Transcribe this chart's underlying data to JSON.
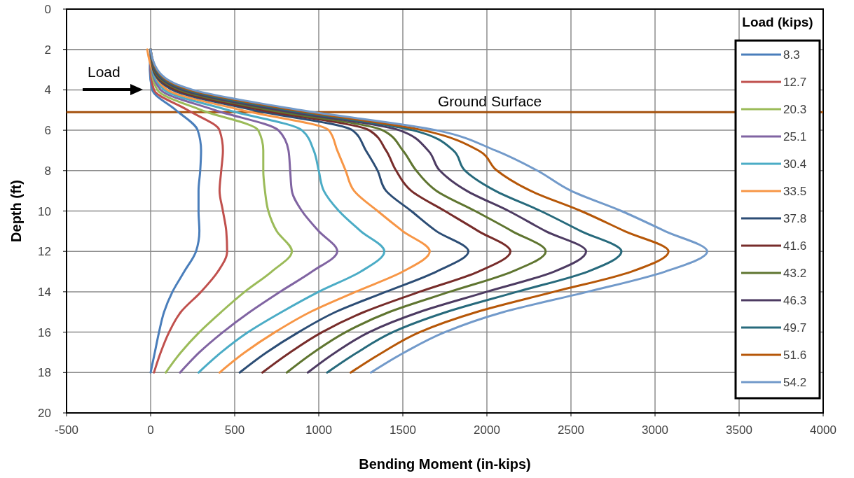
{
  "chart_data": {
    "type": "line",
    "xlabel": "Bending Moment (in-kips)",
    "ylabel": "Depth (ft)",
    "legend_title": "Load (kips)",
    "legend": "right",
    "grid": true,
    "line_style": "solid",
    "marker": "none",
    "xlim": [
      -500,
      4000
    ],
    "xticks": [
      -500,
      0,
      500,
      1000,
      1500,
      2000,
      2500,
      3000,
      3500,
      4000
    ],
    "ylim": [
      20,
      0
    ],
    "yticks": [
      0,
      2,
      4,
      6,
      8,
      10,
      12,
      14,
      16,
      18,
      20
    ],
    "annotations": [
      "Load"
    ],
    "ref_lines": [
      {
        "axis": "y",
        "value": 5.1,
        "label": "Ground Surface",
        "color": "#a5520e"
      }
    ],
    "series": [
      {
        "name": "8.3",
        "color": "#4a7ebb",
        "x": [
          0,
          -5,
          10,
          150,
          280,
          300,
          295,
          285,
          285,
          290,
          270,
          200,
          130,
          80,
          50,
          25,
          0
        ],
        "values": [
          2,
          3,
          4,
          5,
          6,
          7,
          8,
          9,
          10,
          11,
          12,
          13,
          14,
          15,
          16,
          17,
          18
        ]
      },
      {
        "name": "12.7",
        "color": "#c0504d",
        "x": [
          0,
          0,
          20,
          220,
          410,
          430,
          420,
          410,
          430,
          450,
          455,
          400,
          300,
          180,
          110,
          60,
          20
        ],
        "values": [
          2,
          3,
          4,
          5,
          6,
          7,
          8,
          9,
          10,
          11,
          12,
          13,
          14,
          15,
          16,
          17,
          18
        ]
      },
      {
        "name": "20.3",
        "color": "#9bbb59",
        "x": [
          0,
          5,
          40,
          300,
          640,
          670,
          670,
          680,
          700,
          750,
          840,
          720,
          560,
          420,
          290,
          180,
          90
        ],
        "values": [
          2,
          3,
          4,
          5,
          6,
          7,
          8,
          9,
          10,
          11,
          12,
          13,
          14,
          15,
          16,
          17,
          18
        ]
      },
      {
        "name": "25.1",
        "color": "#8064a2",
        "x": [
          0,
          8,
          60,
          380,
          760,
          820,
          830,
          840,
          900,
          1000,
          1110,
          960,
          770,
          590,
          430,
          290,
          175
        ],
        "values": [
          2,
          3,
          4,
          5,
          6,
          7,
          8,
          9,
          10,
          11,
          12,
          13,
          14,
          15,
          16,
          17,
          18
        ]
      },
      {
        "name": "30.4",
        "color": "#4bacc6",
        "x": [
          0,
          10,
          80,
          460,
          900,
          970,
          1000,
          1030,
          1120,
          1250,
          1390,
          1250,
          1000,
          780,
          580,
          420,
          285
        ],
        "values": [
          2,
          3,
          4,
          5,
          6,
          7,
          8,
          9,
          10,
          11,
          12,
          13,
          14,
          15,
          16,
          17,
          18
        ]
      },
      {
        "name": "33.5",
        "color": "#f79646",
        "x": [
          -20,
          12,
          100,
          540,
          1060,
          1110,
          1160,
          1210,
          1350,
          1500,
          1660,
          1500,
          1220,
          950,
          740,
          560,
          410
        ],
        "values": [
          2,
          3,
          4,
          5,
          6,
          7,
          8,
          9,
          10,
          11,
          12,
          13,
          14,
          15,
          16,
          17,
          18
        ]
      },
      {
        "name": "37.8",
        "color": "#2c4d75",
        "x": [
          0,
          15,
          130,
          610,
          1200,
          1280,
          1350,
          1400,
          1550,
          1700,
          1890,
          1700,
          1400,
          1100,
          880,
          690,
          530
        ],
        "values": [
          2,
          3,
          4,
          5,
          6,
          7,
          8,
          9,
          10,
          11,
          12,
          13,
          14,
          15,
          16,
          17,
          18
        ]
      },
      {
        "name": "41.6",
        "color": "#772c2a",
        "x": [
          0,
          18,
          150,
          660,
          1300,
          1400,
          1460,
          1550,
          1750,
          1950,
          2140,
          1950,
          1600,
          1270,
          1020,
          830,
          665
        ],
        "values": [
          2,
          3,
          4,
          5,
          6,
          7,
          8,
          9,
          10,
          11,
          12,
          13,
          14,
          15,
          16,
          17,
          18
        ]
      },
      {
        "name": "43.2",
        "color": "#5f7530",
        "x": [
          0,
          20,
          170,
          710,
          1380,
          1500,
          1580,
          1700,
          1930,
          2150,
          2350,
          2150,
          1780,
          1420,
          1160,
          970,
          810
        ],
        "values": [
          2,
          3,
          4,
          5,
          6,
          7,
          8,
          9,
          10,
          11,
          12,
          13,
          14,
          15,
          16,
          17,
          18
        ]
      },
      {
        "name": "46.3",
        "color": "#4d3b62",
        "x": [
          0,
          25,
          190,
          760,
          1480,
          1650,
          1720,
          1880,
          2130,
          2350,
          2590,
          2400,
          2000,
          1600,
          1300,
          1100,
          935
        ],
        "values": [
          2,
          3,
          4,
          5,
          6,
          7,
          8,
          9,
          10,
          11,
          12,
          13,
          14,
          15,
          16,
          17,
          18
        ]
      },
      {
        "name": "49.7",
        "color": "#276a7c",
        "x": [
          0,
          30,
          210,
          810,
          1560,
          1800,
          1870,
          2050,
          2320,
          2560,
          2800,
          2600,
          2180,
          1760,
          1440,
          1230,
          1050
        ],
        "values": [
          2,
          3,
          4,
          5,
          6,
          7,
          8,
          9,
          10,
          11,
          12,
          13,
          14,
          15,
          16,
          17,
          18
        ]
      },
      {
        "name": "51.6",
        "color": "#b65708",
        "x": [
          0,
          35,
          230,
          850,
          1620,
          1950,
          2060,
          2260,
          2560,
          2820,
          3080,
          2860,
          2400,
          1940,
          1600,
          1380,
          1190
        ],
        "values": [
          2,
          3,
          4,
          5,
          6,
          7,
          8,
          9,
          10,
          11,
          12,
          13,
          14,
          15,
          16,
          17,
          18
        ]
      },
      {
        "name": "54.2",
        "color": "#729aca",
        "x": [
          0,
          40,
          250,
          890,
          1700,
          2050,
          2300,
          2500,
          2800,
          3060,
          3310,
          3060,
          2600,
          2100,
          1750,
          1510,
          1310
        ],
        "values": [
          2,
          3,
          4,
          5,
          6,
          7,
          8,
          9,
          10,
          11,
          12,
          13,
          14,
          15,
          16,
          17,
          18
        ]
      }
    ]
  }
}
